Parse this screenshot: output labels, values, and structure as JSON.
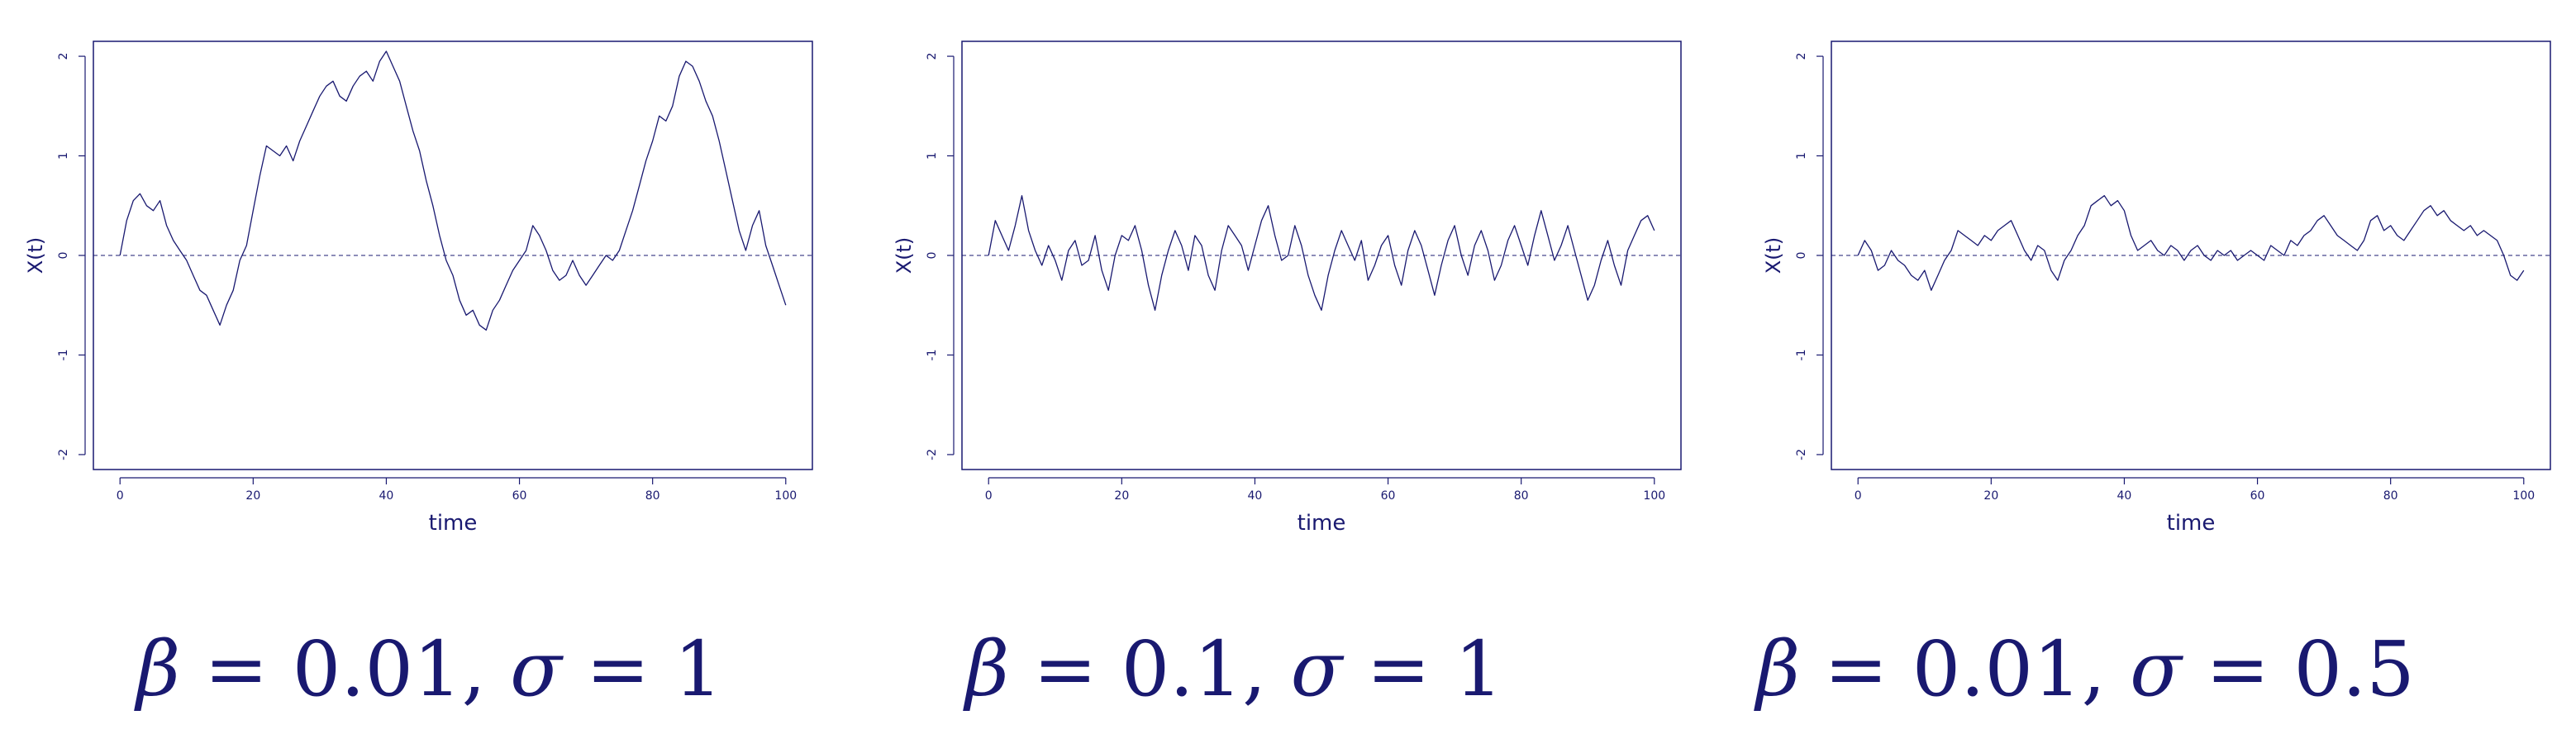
{
  "colors": {
    "ink": "#191970",
    "background": "#ffffff"
  },
  "captions": [
    {
      "beta_symbol": "β",
      "beta_value": " = 0.01, ",
      "sigma_symbol": "σ",
      "sigma_value": " = 1"
    },
    {
      "beta_symbol": "β",
      "beta_value": " = 0.1, ",
      "sigma_symbol": "σ",
      "sigma_value": " = 1"
    },
    {
      "beta_symbol": "β",
      "beta_value": " = 0.01, ",
      "sigma_symbol": "σ",
      "sigma_value": " = 0.5"
    }
  ],
  "chart_data": [
    {
      "type": "line",
      "xlabel": "time",
      "ylabel": "X(t)",
      "xlim": [
        -4,
        104
      ],
      "ylim": [
        -2.15,
        2.15
      ],
      "xticks": [
        0,
        20,
        40,
        60,
        80,
        100
      ],
      "yticks": [
        -2,
        -1,
        0,
        1,
        2
      ],
      "reference_line": {
        "y": 0,
        "style": "dashed"
      },
      "grid": false,
      "series": [
        {
          "x": [
            0,
            1,
            2,
            3,
            4,
            5,
            6,
            7,
            8,
            9,
            10,
            11,
            12,
            13,
            14,
            15,
            16,
            17,
            18,
            19,
            20,
            21,
            22,
            23,
            24,
            25,
            26,
            27,
            28,
            29,
            30,
            31,
            32,
            33,
            34,
            35,
            36,
            37,
            38,
            39,
            40,
            41,
            42,
            43,
            44,
            45,
            46,
            47,
            48,
            49,
            50,
            51,
            52,
            53,
            54,
            55,
            56,
            57,
            58,
            59,
            60,
            61,
            62,
            63,
            64,
            65,
            66,
            67,
            68,
            69,
            70,
            71,
            72,
            73,
            74,
            75,
            76,
            77,
            78,
            79,
            80,
            81,
            82,
            83,
            84,
            85,
            86,
            87,
            88,
            89,
            90,
            91,
            92,
            93,
            94,
            95,
            96,
            97,
            98,
            99,
            100
          ],
          "y": [
            0.0,
            0.35,
            0.55,
            0.62,
            0.5,
            0.45,
            0.55,
            0.3,
            0.15,
            0.05,
            -0.05,
            -0.2,
            -0.35,
            -0.4,
            -0.55,
            -0.7,
            -0.5,
            -0.35,
            -0.05,
            0.1,
            0.45,
            0.8,
            1.1,
            1.05,
            1.0,
            1.1,
            0.95,
            1.15,
            1.3,
            1.45,
            1.6,
            1.7,
            1.75,
            1.6,
            1.55,
            1.7,
            1.8,
            1.85,
            1.75,
            1.95,
            2.05,
            1.9,
            1.75,
            1.5,
            1.25,
            1.05,
            0.75,
            0.5,
            0.2,
            -0.05,
            -0.2,
            -0.45,
            -0.6,
            -0.55,
            -0.7,
            -0.75,
            -0.55,
            -0.45,
            -0.3,
            -0.15,
            -0.05,
            0.05,
            0.3,
            0.2,
            0.05,
            -0.15,
            -0.25,
            -0.2,
            -0.05,
            -0.2,
            -0.3,
            -0.2,
            -0.1,
            0.0,
            -0.05,
            0.05,
            0.25,
            0.45,
            0.7,
            0.95,
            1.15,
            1.4,
            1.35,
            1.5,
            1.8,
            1.95,
            1.9,
            1.75,
            1.55,
            1.4,
            1.15,
            0.85,
            0.55,
            0.25,
            0.05,
            0.3,
            0.45,
            0.1,
            -0.1,
            -0.3,
            -0.5
          ]
        }
      ]
    },
    {
      "type": "line",
      "xlabel": "time",
      "ylabel": "X(t)",
      "xlim": [
        -4,
        104
      ],
      "ylim": [
        -2.15,
        2.15
      ],
      "xticks": [
        0,
        20,
        40,
        60,
        80,
        100
      ],
      "yticks": [
        -2,
        -1,
        0,
        1,
        2
      ],
      "reference_line": {
        "y": 0,
        "style": "dashed"
      },
      "grid": false,
      "series": [
        {
          "x": [
            0,
            1,
            2,
            3,
            4,
            5,
            6,
            7,
            8,
            9,
            10,
            11,
            12,
            13,
            14,
            15,
            16,
            17,
            18,
            19,
            20,
            21,
            22,
            23,
            24,
            25,
            26,
            27,
            28,
            29,
            30,
            31,
            32,
            33,
            34,
            35,
            36,
            37,
            38,
            39,
            40,
            41,
            42,
            43,
            44,
            45,
            46,
            47,
            48,
            49,
            50,
            51,
            52,
            53,
            54,
            55,
            56,
            57,
            58,
            59,
            60,
            61,
            62,
            63,
            64,
            65,
            66,
            67,
            68,
            69,
            70,
            71,
            72,
            73,
            74,
            75,
            76,
            77,
            78,
            79,
            80,
            81,
            82,
            83,
            84,
            85,
            86,
            87,
            88,
            89,
            90,
            91,
            92,
            93,
            94,
            95,
            96,
            97,
            98,
            99,
            100
          ],
          "y": [
            0.0,
            0.35,
            0.2,
            0.05,
            0.3,
            0.6,
            0.25,
            0.05,
            -0.1,
            0.1,
            -0.05,
            -0.25,
            0.05,
            0.15,
            -0.1,
            -0.05,
            0.2,
            -0.15,
            -0.35,
            0.0,
            0.2,
            0.15,
            0.3,
            0.05,
            -0.3,
            -0.55,
            -0.2,
            0.05,
            0.25,
            0.1,
            -0.15,
            0.2,
            0.1,
            -0.2,
            -0.35,
            0.05,
            0.3,
            0.2,
            0.1,
            -0.15,
            0.1,
            0.35,
            0.5,
            0.2,
            -0.05,
            0.0,
            0.3,
            0.1,
            -0.2,
            -0.4,
            -0.55,
            -0.2,
            0.05,
            0.25,
            0.1,
            -0.05,
            0.15,
            -0.25,
            -0.1,
            0.1,
            0.2,
            -0.1,
            -0.3,
            0.05,
            0.25,
            0.1,
            -0.15,
            -0.4,
            -0.1,
            0.15,
            0.3,
            0.0,
            -0.2,
            0.1,
            0.25,
            0.05,
            -0.25,
            -0.1,
            0.15,
            0.3,
            0.1,
            -0.1,
            0.2,
            0.45,
            0.2,
            -0.05,
            0.1,
            0.3,
            0.05,
            -0.2,
            -0.45,
            -0.3,
            -0.05,
            0.15,
            -0.1,
            -0.3,
            0.05,
            0.2,
            0.35,
            0.4,
            0.25
          ]
        }
      ]
    },
    {
      "type": "line",
      "xlabel": "time",
      "ylabel": "X(t)",
      "xlim": [
        -4,
        104
      ],
      "ylim": [
        -2.15,
        2.15
      ],
      "xticks": [
        0,
        20,
        40,
        60,
        80,
        100
      ],
      "yticks": [
        -2,
        -1,
        0,
        1,
        2
      ],
      "reference_line": {
        "y": 0,
        "style": "dashed"
      },
      "grid": false,
      "series": [
        {
          "x": [
            0,
            1,
            2,
            3,
            4,
            5,
            6,
            7,
            8,
            9,
            10,
            11,
            12,
            13,
            14,
            15,
            16,
            17,
            18,
            19,
            20,
            21,
            22,
            23,
            24,
            25,
            26,
            27,
            28,
            29,
            30,
            31,
            32,
            33,
            34,
            35,
            36,
            37,
            38,
            39,
            40,
            41,
            42,
            43,
            44,
            45,
            46,
            47,
            48,
            49,
            50,
            51,
            52,
            53,
            54,
            55,
            56,
            57,
            58,
            59,
            60,
            61,
            62,
            63,
            64,
            65,
            66,
            67,
            68,
            69,
            70,
            71,
            72,
            73,
            74,
            75,
            76,
            77,
            78,
            79,
            80,
            81,
            82,
            83,
            84,
            85,
            86,
            87,
            88,
            89,
            90,
            91,
            92,
            93,
            94,
            95,
            96,
            97,
            98,
            99,
            100
          ],
          "y": [
            0.0,
            0.15,
            0.05,
            -0.15,
            -0.1,
            0.05,
            -0.05,
            -0.1,
            -0.2,
            -0.25,
            -0.15,
            -0.35,
            -0.2,
            -0.05,
            0.05,
            0.25,
            0.2,
            0.15,
            0.1,
            0.2,
            0.15,
            0.25,
            0.3,
            0.35,
            0.2,
            0.05,
            -0.05,
            0.1,
            0.05,
            -0.15,
            -0.25,
            -0.05,
            0.05,
            0.2,
            0.3,
            0.5,
            0.55,
            0.6,
            0.5,
            0.55,
            0.45,
            0.2,
            0.05,
            0.1,
            0.15,
            0.05,
            0.0,
            0.1,
            0.05,
            -0.05,
            0.05,
            0.1,
            0.0,
            -0.05,
            0.05,
            0.0,
            0.05,
            -0.05,
            0.0,
            0.05,
            0.0,
            -0.05,
            0.1,
            0.05,
            0.0,
            0.15,
            0.1,
            0.2,
            0.25,
            0.35,
            0.4,
            0.3,
            0.2,
            0.15,
            0.1,
            0.05,
            0.15,
            0.35,
            0.4,
            0.25,
            0.3,
            0.2,
            0.15,
            0.25,
            0.35,
            0.45,
            0.5,
            0.4,
            0.45,
            0.35,
            0.3,
            0.25,
            0.3,
            0.2,
            0.25,
            0.2,
            0.15,
            0.0,
            -0.2,
            -0.25,
            -0.15
          ]
        }
      ]
    }
  ]
}
